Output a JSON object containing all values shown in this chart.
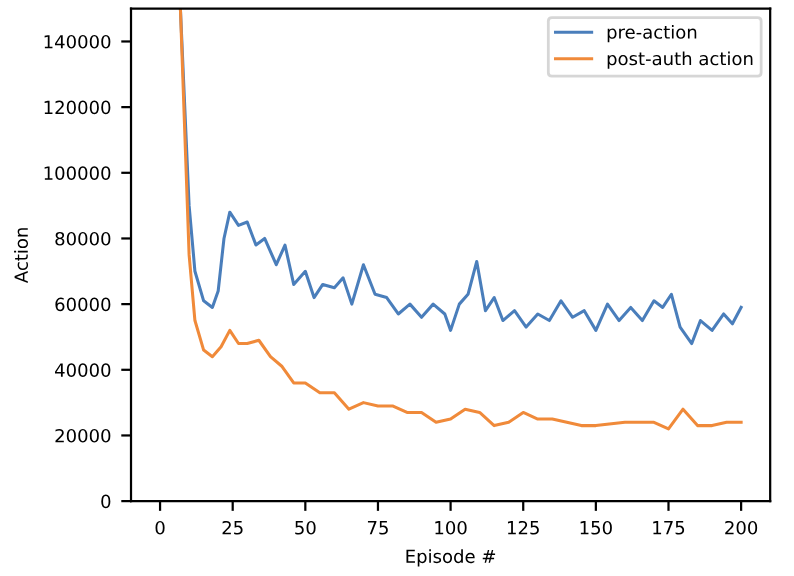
{
  "chart_data": {
    "type": "line",
    "xlabel": "Episode #",
    "ylabel": "Action",
    "xlim": [
      -10,
      210
    ],
    "ylim": [
      0,
      150000
    ],
    "xticks": [
      0,
      25,
      50,
      75,
      100,
      125,
      150,
      175,
      200
    ],
    "yticks": [
      0,
      20000,
      40000,
      60000,
      80000,
      100000,
      120000,
      140000
    ],
    "grid": false,
    "legend": "top right",
    "series": [
      {
        "name": "pre-action",
        "color": "#4a7ebb",
        "x": [
          7,
          10,
          12,
          15,
          18,
          20,
          22,
          24,
          27,
          30,
          33,
          36,
          40,
          43,
          46,
          50,
          53,
          56,
          60,
          63,
          66,
          70,
          74,
          78,
          82,
          86,
          90,
          94,
          98,
          100,
          103,
          106,
          109,
          112,
          115,
          118,
          122,
          126,
          130,
          134,
          138,
          142,
          146,
          150,
          154,
          158,
          162,
          166,
          170,
          173,
          176,
          179,
          183,
          186,
          190,
          194,
          197,
          200
        ],
        "values": [
          150000,
          90000,
          70000,
          61000,
          59000,
          64000,
          80000,
          88000,
          84000,
          85000,
          78000,
          80000,
          72000,
          78000,
          66000,
          70000,
          62000,
          66000,
          65000,
          68000,
          60000,
          72000,
          63000,
          62000,
          57000,
          60000,
          56000,
          60000,
          57000,
          52000,
          60000,
          63000,
          73000,
          58000,
          62000,
          55000,
          58000,
          53000,
          57000,
          55000,
          61000,
          56000,
          58000,
          52000,
          60000,
          55000,
          59000,
          55000,
          61000,
          59000,
          63000,
          53000,
          48000,
          55000,
          52000,
          57000,
          54000,
          59000
        ]
      },
      {
        "name": "post-auth action",
        "color": "#f08a3a",
        "x": [
          7,
          10,
          12,
          15,
          18,
          21,
          24,
          27,
          30,
          34,
          38,
          42,
          46,
          50,
          55,
          60,
          65,
          70,
          75,
          80,
          85,
          90,
          95,
          100,
          105,
          110,
          115,
          120,
          125,
          130,
          135,
          140,
          145,
          150,
          160,
          170,
          175,
          180,
          185,
          190,
          195,
          200
        ],
        "values": [
          150000,
          75000,
          55000,
          46000,
          44000,
          47000,
          52000,
          48000,
          48000,
          49000,
          44000,
          41000,
          36000,
          36000,
          33000,
          33000,
          28000,
          30000,
          29000,
          29000,
          27000,
          27000,
          24000,
          25000,
          28000,
          27000,
          23000,
          24000,
          27000,
          25000,
          25000,
          24000,
          23000,
          23000,
          24000,
          24000,
          22000,
          28000,
          23000,
          23000,
          24000,
          24000
        ]
      }
    ]
  }
}
